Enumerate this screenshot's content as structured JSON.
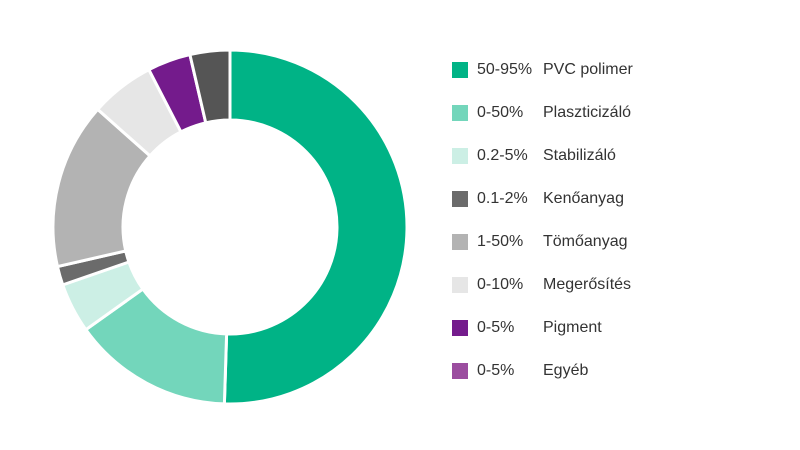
{
  "chart_data": {
    "type": "pie",
    "donut": true,
    "title": "",
    "slices": [
      {
        "range": "50-95%",
        "label": "PVC polimer",
        "value": 50,
        "color": "#00b386"
      },
      {
        "range": "0-50%",
        "label": "Plaszticizáló",
        "value": 14.5,
        "color": "#73d6bb"
      },
      {
        "range": "0.2-5%",
        "label": "Stabilizáló",
        "value": 4.5,
        "color": "#ccefe5"
      },
      {
        "range": "0.1-2%",
        "label": "Kenőanyag",
        "value": 1.7,
        "color": "#6b6b6b"
      },
      {
        "range": "1-50%",
        "label": "Tömőanyag",
        "value": 15,
        "color": "#b3b3b3"
      },
      {
        "range": "0-10%",
        "label": "Megerősítés",
        "value": 5.8,
        "color": "#e6e6e6"
      },
      {
        "range": "0-5%",
        "label": "Pigment",
        "value": 3.9,
        "color": "#741b8c"
      },
      {
        "range": "0-5%",
        "label": "Egyéb",
        "value": 3.6,
        "color": "#555555",
        "legend_color": "#9b4d9f"
      }
    ],
    "legend_position": "right"
  }
}
